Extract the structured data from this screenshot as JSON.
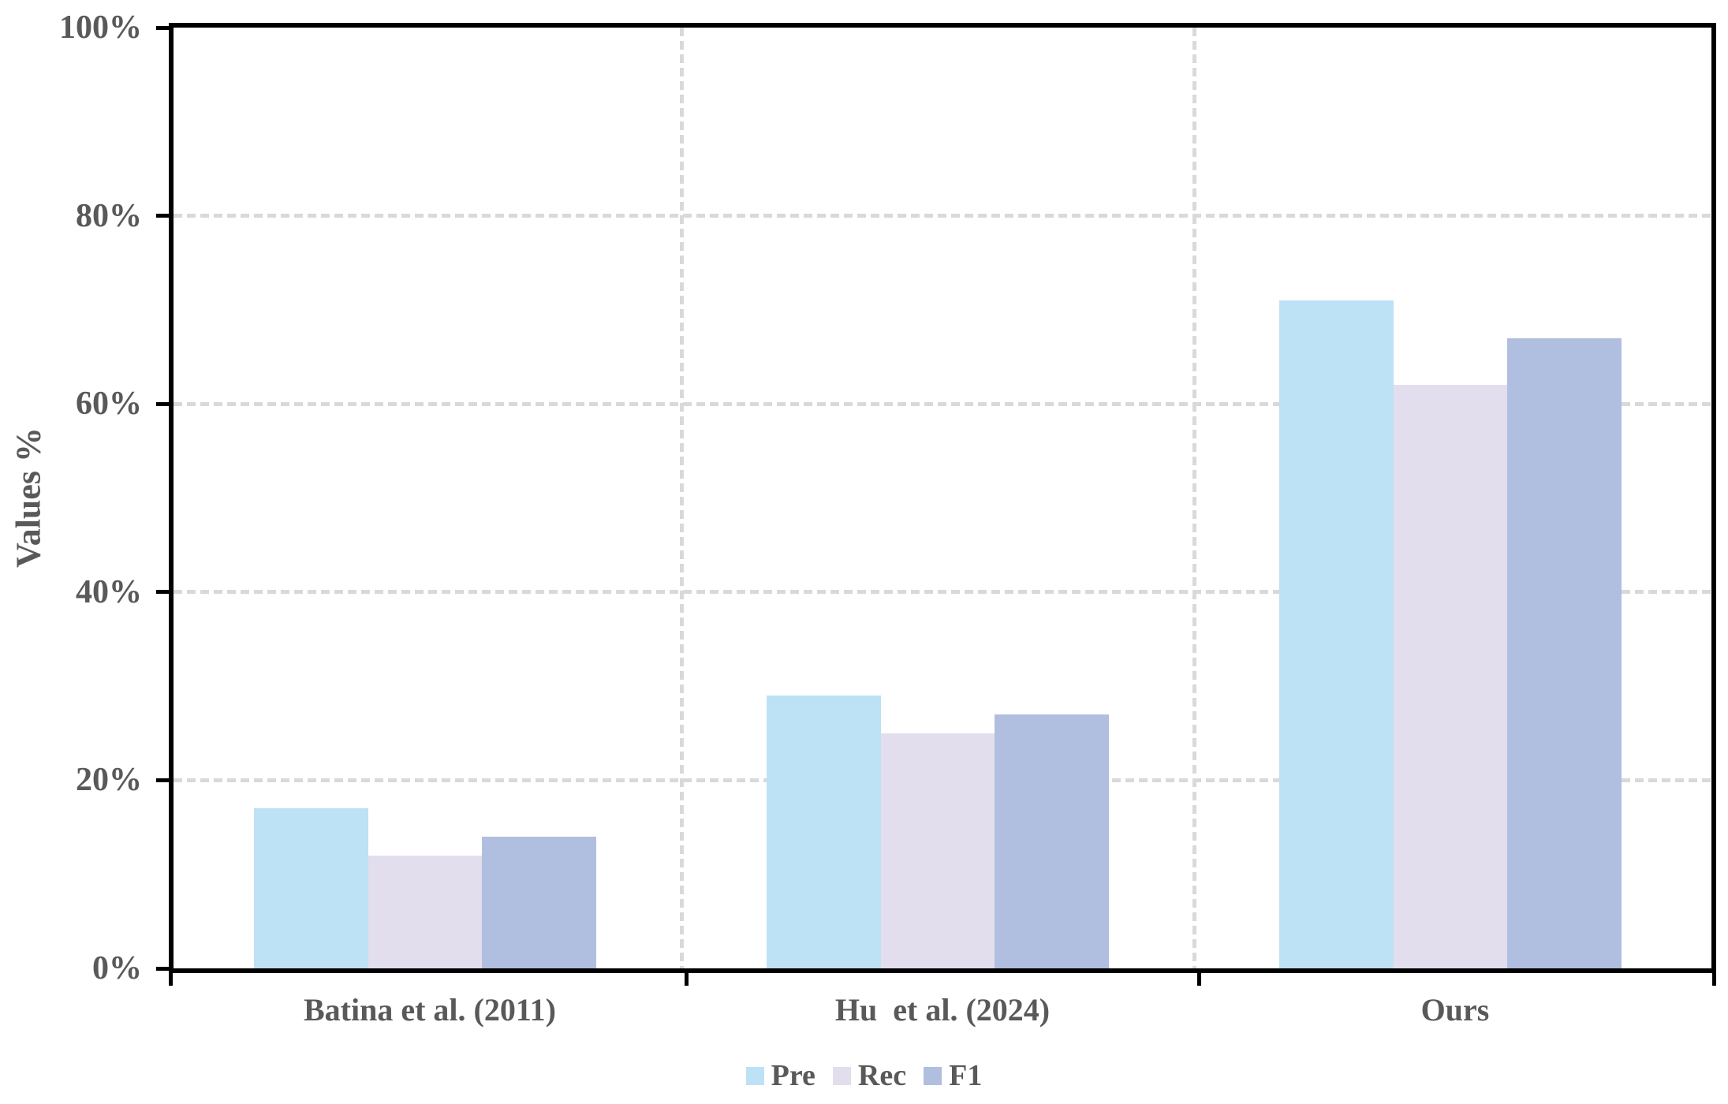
{
  "chart_data": {
    "type": "bar",
    "title": "",
    "xlabel": "",
    "ylabel": "Values %",
    "categories": [
      "Batina et al. (2011)",
      "Hu  et al. (2024)",
      "Ours"
    ],
    "series": [
      {
        "name": "Pre",
        "color": "#BDE1F5",
        "values": [
          17,
          29,
          71
        ]
      },
      {
        "name": "Rec",
        "color": "#E2DEED",
        "values": [
          12,
          25,
          62
        ]
      },
      {
        "name": "F1",
        "color": "#B0BEE0",
        "values": [
          14,
          27,
          67
        ]
      }
    ],
    "ylim": [
      0,
      100
    ],
    "ytick_step": 20,
    "ytick_labels": [
      "0%",
      "20%",
      "40%",
      "60%",
      "80%",
      "100%"
    ],
    "grid": true,
    "gridline_style": "dashed",
    "legend_position": "bottom"
  },
  "colors": {
    "text": "#595959",
    "axis": "#000000",
    "gridline": "#D9D9D9",
    "background": "#FFFFFF"
  }
}
